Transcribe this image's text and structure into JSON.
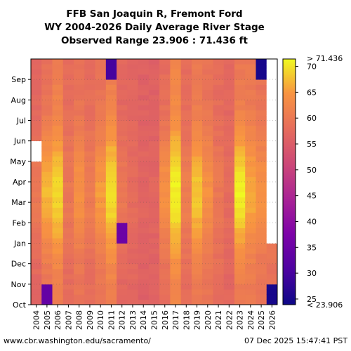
{
  "chart_data": {
    "type": "heatmap",
    "title_lines": [
      "FFB San Joaquin R, Fremont Ford",
      "WY 2004-2026 Daily Average River Stage",
      "Observed Range 23.906 : 71.436 ft"
    ],
    "x_categories": [
      "2004",
      "2005",
      "2006",
      "2007",
      "2008",
      "2009",
      "2010",
      "2011",
      "2012",
      "2013",
      "2014",
      "2015",
      "2016",
      "2017",
      "2018",
      "2019",
      "2020",
      "2021",
      "2022",
      "2023",
      "2024",
      "2025",
      "2026"
    ],
    "y_months": [
      "Oct",
      "Nov",
      "Dec",
      "Jan",
      "Feb",
      "Mar",
      "Apr",
      "May",
      "Jun",
      "Jul",
      "Aug",
      "Sep"
    ],
    "colorbar": {
      "min": 23.906,
      "max": 71.436,
      "ticks": [
        25,
        30,
        35,
        40,
        45,
        50,
        55,
        60,
        65,
        70
      ],
      "max_label": "> 71.436",
      "min_label": "< 23.906",
      "colormap": "plasma"
    },
    "water_year_stage_estimates": {
      "base_level_by_year": [
        57,
        59,
        61,
        58,
        59,
        58,
        59,
        61,
        57,
        57,
        56,
        56,
        58,
        62,
        58,
        60,
        59,
        58,
        57,
        60,
        60,
        59,
        58
      ],
      "peak_level_by_year": [
        60,
        67,
        69,
        60,
        64,
        61,
        65,
        70,
        60,
        58,
        57,
        57,
        64,
        71,
        61,
        68,
        64,
        60,
        58,
        71,
        66,
        64,
        64
      ],
      "missing_ranges": [
        {
          "year": "2026",
          "from_month": "Jan",
          "to_month": "Sep"
        },
        {
          "year": "2004",
          "from_month": "May",
          "to_month": "May"
        }
      ],
      "low_stage_events": [
        {
          "year": "2025",
          "month": "Sep",
          "value": 25
        },
        {
          "year": "2026",
          "month": "Oct",
          "value": 25
        },
        {
          "year": "2012",
          "month": "Jan",
          "value": 35
        },
        {
          "year": "2011",
          "month": "Sep",
          "value": 30
        },
        {
          "year": "2005",
          "month": "Oct",
          "value": 34
        }
      ]
    }
  },
  "footer": {
    "left": "www.cbr.washington.edu/sacramento/",
    "right": "07 Dec 2025 15:47:41 PST"
  }
}
